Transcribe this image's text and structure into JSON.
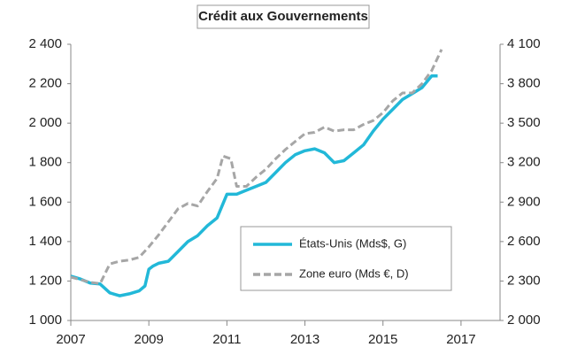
{
  "chart_data": {
    "type": "line",
    "title": "Crédit aux Gouvernements",
    "xlim": [
      2007,
      2018
    ],
    "xticks": [
      2007,
      2009,
      2011,
      2013,
      2015,
      2017
    ],
    "ylim": [
      1000,
      2400
    ],
    "yticks": [
      {
        "value": 1000,
        "label": "1 000"
      },
      {
        "value": 1200,
        "label": "1 200"
      },
      {
        "value": 1400,
        "label": "1 400"
      },
      {
        "value": 1600,
        "label": "1 600"
      },
      {
        "value": 1800,
        "label": "1 800"
      },
      {
        "value": 2000,
        "label": "2 000"
      },
      {
        "value": 2200,
        "label": "2 200"
      },
      {
        "value": 2400,
        "label": "2 400"
      }
    ],
    "y2lim": [
      2000,
      4100
    ],
    "y2ticks": [
      {
        "value": 2000,
        "label": "2 000"
      },
      {
        "value": 2300,
        "label": "2 300"
      },
      {
        "value": 2600,
        "label": "2 600"
      },
      {
        "value": 2900,
        "label": "2 900"
      },
      {
        "value": 3200,
        "label": "3 200"
      },
      {
        "value": 3500,
        "label": "3 500"
      },
      {
        "value": 3800,
        "label": "3 800"
      },
      {
        "value": 4100,
        "label": "4 100"
      }
    ],
    "series": [
      {
        "name": "États-Unis (Mds$, G)",
        "color": "#22b8d8",
        "dashed": false,
        "x": [
          2007.0,
          2007.25,
          2007.5,
          2007.75,
          2008.0,
          2008.25,
          2008.5,
          2008.75,
          2008.9,
          2009.0,
          2009.1,
          2009.25,
          2009.5,
          2009.75,
          2010.0,
          2010.25,
          2010.5,
          2010.75,
          2011.0,
          2011.25,
          2011.5,
          2011.75,
          2012.0,
          2012.25,
          2012.5,
          2012.75,
          2013.0,
          2013.25,
          2013.5,
          2013.75,
          2014.0,
          2014.25,
          2014.5,
          2014.75,
          2015.0,
          2015.25,
          2015.5,
          2015.75,
          2016.0,
          2016.25,
          2016.4
        ],
        "values": [
          1225,
          1210,
          1190,
          1185,
          1140,
          1125,
          1135,
          1150,
          1175,
          1260,
          1275,
          1290,
          1300,
          1350,
          1400,
          1430,
          1480,
          1520,
          1640,
          1640,
          1660,
          1680,
          1700,
          1750,
          1800,
          1840,
          1860,
          1870,
          1850,
          1800,
          1810,
          1850,
          1890,
          1960,
          2020,
          2070,
          2120,
          2150,
          2180,
          2240,
          2240
        ]
      },
      {
        "name": "Zone euro (Mds €, D)",
        "color": "#a6a6a6",
        "dashed": true,
        "axis": "y2",
        "x": [
          2007.0,
          2007.25,
          2007.5,
          2007.75,
          2008.0,
          2008.25,
          2008.5,
          2008.75,
          2009.0,
          2009.25,
          2009.5,
          2009.75,
          2010.0,
          2010.25,
          2010.5,
          2010.75,
          2010.9,
          2011.1,
          2011.25,
          2011.5,
          2011.75,
          2012.0,
          2012.25,
          2012.5,
          2012.75,
          2013.0,
          2013.25,
          2013.5,
          2013.75,
          2014.0,
          2014.25,
          2014.5,
          2014.75,
          2015.0,
          2015.25,
          2015.5,
          2015.75,
          2016.0,
          2016.25,
          2016.5
        ],
        "values": [
          2330,
          2310,
          2290,
          2280,
          2430,
          2450,
          2460,
          2480,
          2560,
          2650,
          2750,
          2850,
          2890,
          2870,
          2980,
          3080,
          3250,
          3230,
          3020,
          3020,
          3090,
          3150,
          3230,
          3300,
          3360,
          3420,
          3430,
          3470,
          3440,
          3450,
          3450,
          3490,
          3520,
          3580,
          3670,
          3730,
          3730,
          3800,
          3900,
          4060
        ]
      }
    ]
  }
}
